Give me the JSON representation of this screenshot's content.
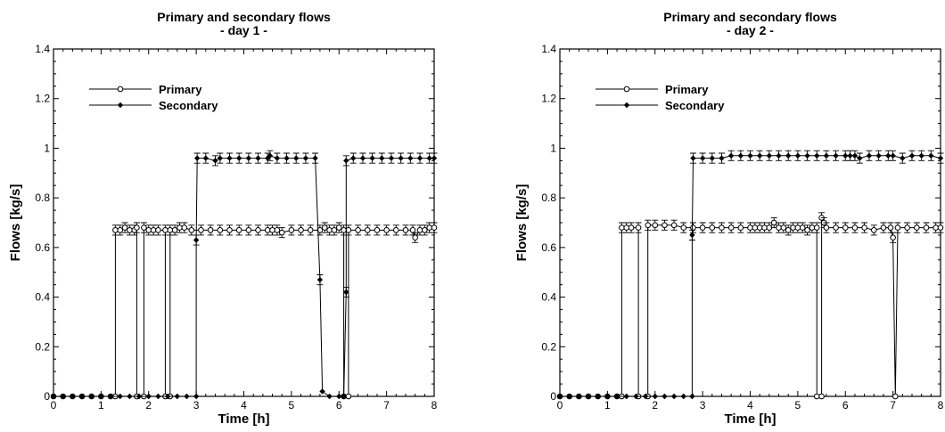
{
  "chart_data": [
    {
      "type": "line",
      "title": "Primary and secondary flows",
      "subtitle": "- day 1 -",
      "xlabel": "Time [h]",
      "ylabel": "Flows [kg/s]",
      "xlim": [
        0,
        8
      ],
      "ylim": [
        0,
        1.4
      ],
      "x_ticks": [
        "0",
        "1",
        "2",
        "3",
        "4",
        "5",
        "6",
        "7",
        "8"
      ],
      "y_ticks": [
        "0",
        "0.2",
        "0.4",
        "0.6",
        "0.8",
        "1",
        "1.2",
        "1.4"
      ],
      "grid": false,
      "legend_position": "top-left",
      "error_bar": 0.02,
      "series": [
        {
          "name": "Primary",
          "marker": "open-circle",
          "points": [
            [
              0,
              0
            ],
            [
              0.2,
              0
            ],
            [
              0.4,
              0
            ],
            [
              0.6,
              0
            ],
            [
              0.8,
              0
            ],
            [
              1.0,
              0
            ],
            [
              1.2,
              0
            ],
            [
              1.3,
              0
            ],
            [
              1.3,
              0.67
            ],
            [
              1.4,
              0.67
            ],
            [
              1.5,
              0.68
            ],
            [
              1.6,
              0.67
            ],
            [
              1.7,
              0.67
            ],
            [
              1.75,
              0.68
            ],
            [
              1.75,
              0
            ],
            [
              1.9,
              0
            ],
            [
              1.9,
              0.68
            ],
            [
              2.0,
              0.67
            ],
            [
              2.1,
              0.67
            ],
            [
              2.2,
              0.67
            ],
            [
              2.35,
              0.67
            ],
            [
              2.35,
              0
            ],
            [
              2.45,
              0
            ],
            [
              2.45,
              0.67
            ],
            [
              2.55,
              0.67
            ],
            [
              2.65,
              0.68
            ],
            [
              2.75,
              0.68
            ],
            [
              2.9,
              0.67
            ],
            [
              3.1,
              0.67
            ],
            [
              3.3,
              0.67
            ],
            [
              3.5,
              0.67
            ],
            [
              3.7,
              0.67
            ],
            [
              3.9,
              0.67
            ],
            [
              4.1,
              0.67
            ],
            [
              4.3,
              0.67
            ],
            [
              4.5,
              0.67
            ],
            [
              4.6,
              0.67
            ],
            [
              4.7,
              0.67
            ],
            [
              4.8,
              0.66
            ],
            [
              5.0,
              0.67
            ],
            [
              5.2,
              0.67
            ],
            [
              5.4,
              0.67
            ],
            [
              5.6,
              0.67
            ],
            [
              5.7,
              0.68
            ],
            [
              5.8,
              0.67
            ],
            [
              5.9,
              0.67
            ],
            [
              6.0,
              0.68
            ],
            [
              6.1,
              0.67
            ],
            [
              6.1,
              0
            ],
            [
              6.2,
              0
            ],
            [
              6.2,
              0.67
            ],
            [
              6.4,
              0.67
            ],
            [
              6.6,
              0.67
            ],
            [
              6.8,
              0.67
            ],
            [
              7.0,
              0.67
            ],
            [
              7.2,
              0.67
            ],
            [
              7.4,
              0.67
            ],
            [
              7.55,
              0.67
            ],
            [
              7.6,
              0.64
            ],
            [
              7.7,
              0.67
            ],
            [
              7.8,
              0.67
            ],
            [
              7.9,
              0.68
            ],
            [
              8.0,
              0.68
            ]
          ]
        },
        {
          "name": "Secondary",
          "marker": "filled-diamond",
          "points": [
            [
              0,
              0
            ],
            [
              0.2,
              0
            ],
            [
              0.4,
              0
            ],
            [
              0.6,
              0
            ],
            [
              0.8,
              0
            ],
            [
              1.0,
              0
            ],
            [
              1.2,
              0
            ],
            [
              1.4,
              0
            ],
            [
              1.6,
              0
            ],
            [
              1.8,
              0
            ],
            [
              2.0,
              0
            ],
            [
              2.2,
              0
            ],
            [
              2.4,
              0
            ],
            [
              2.6,
              0
            ],
            [
              2.8,
              0
            ],
            [
              3.0,
              0
            ],
            [
              3.0,
              0.63
            ],
            [
              3.02,
              0.96
            ],
            [
              3.2,
              0.96
            ],
            [
              3.4,
              0.95
            ],
            [
              3.5,
              0.96
            ],
            [
              3.7,
              0.96
            ],
            [
              3.9,
              0.96
            ],
            [
              4.1,
              0.96
            ],
            [
              4.3,
              0.96
            ],
            [
              4.5,
              0.96
            ],
            [
              4.55,
              0.97
            ],
            [
              4.7,
              0.96
            ],
            [
              4.9,
              0.96
            ],
            [
              5.1,
              0.96
            ],
            [
              5.3,
              0.96
            ],
            [
              5.5,
              0.96
            ],
            [
              5.6,
              0.47
            ],
            [
              5.65,
              0.02
            ],
            [
              5.8,
              0
            ],
            [
              6.0,
              0
            ],
            [
              6.1,
              0
            ],
            [
              6.15,
              0.42
            ],
            [
              6.15,
              0.95
            ],
            [
              6.3,
              0.96
            ],
            [
              6.5,
              0.96
            ],
            [
              6.7,
              0.96
            ],
            [
              6.9,
              0.96
            ],
            [
              7.1,
              0.96
            ],
            [
              7.3,
              0.96
            ],
            [
              7.5,
              0.96
            ],
            [
              7.7,
              0.96
            ],
            [
              7.9,
              0.96
            ],
            [
              8.0,
              0.96
            ]
          ]
        }
      ]
    },
    {
      "type": "line",
      "title": "Primary and secondary flows",
      "subtitle": "- day 2 -",
      "xlabel": "Time [h]",
      "ylabel": "Flows [kg/s]",
      "xlim": [
        0,
        8
      ],
      "ylim": [
        0,
        1.4
      ],
      "x_ticks": [
        "0",
        "1",
        "2",
        "3",
        "4",
        "5",
        "6",
        "7",
        "8"
      ],
      "y_ticks": [
        "0",
        "0.2",
        "0.4",
        "0.6",
        "0.8",
        "1",
        "1.2",
        "1.4"
      ],
      "grid": false,
      "legend_position": "top-left",
      "error_bar": 0.02,
      "series": [
        {
          "name": "Primary",
          "marker": "open-circle",
          "points": [
            [
              0,
              0
            ],
            [
              0.2,
              0
            ],
            [
              0.4,
              0
            ],
            [
              0.6,
              0
            ],
            [
              0.8,
              0
            ],
            [
              1.0,
              0
            ],
            [
              1.2,
              0
            ],
            [
              1.3,
              0
            ],
            [
              1.3,
              0.68
            ],
            [
              1.4,
              0.68
            ],
            [
              1.5,
              0.68
            ],
            [
              1.65,
              0.68
            ],
            [
              1.65,
              0
            ],
            [
              1.85,
              0
            ],
            [
              1.85,
              0.69
            ],
            [
              2.0,
              0.69
            ],
            [
              2.2,
              0.69
            ],
            [
              2.4,
              0.69
            ],
            [
              2.6,
              0.68
            ],
            [
              2.8,
              0.68
            ],
            [
              3.0,
              0.68
            ],
            [
              3.2,
              0.68
            ],
            [
              3.4,
              0.68
            ],
            [
              3.6,
              0.68
            ],
            [
              3.8,
              0.68
            ],
            [
              4.0,
              0.68
            ],
            [
              4.1,
              0.68
            ],
            [
              4.2,
              0.68
            ],
            [
              4.3,
              0.68
            ],
            [
              4.4,
              0.68
            ],
            [
              4.5,
              0.7
            ],
            [
              4.6,
              0.68
            ],
            [
              4.7,
              0.68
            ],
            [
              4.8,
              0.67
            ],
            [
              4.9,
              0.68
            ],
            [
              5.0,
              0.68
            ],
            [
              5.1,
              0.68
            ],
            [
              5.2,
              0.67
            ],
            [
              5.3,
              0.68
            ],
            [
              5.4,
              0.68
            ],
            [
              5.4,
              0
            ],
            [
              5.5,
              0
            ],
            [
              5.5,
              0.72
            ],
            [
              5.55,
              0.7
            ],
            [
              5.6,
              0.68
            ],
            [
              5.8,
              0.68
            ],
            [
              6.0,
              0.68
            ],
            [
              6.2,
              0.68
            ],
            [
              6.4,
              0.68
            ],
            [
              6.6,
              0.67
            ],
            [
              6.8,
              0.68
            ],
            [
              6.95,
              0.68
            ],
            [
              7.0,
              0.64
            ],
            [
              7.05,
              0
            ],
            [
              7.1,
              0.68
            ],
            [
              7.3,
              0.68
            ],
            [
              7.5,
              0.68
            ],
            [
              7.7,
              0.68
            ],
            [
              7.9,
              0.68
            ],
            [
              8.0,
              0.68
            ]
          ]
        },
        {
          "name": "Secondary",
          "marker": "filled-diamond",
          "points": [
            [
              0,
              0
            ],
            [
              0.2,
              0
            ],
            [
              0.4,
              0
            ],
            [
              0.6,
              0
            ],
            [
              0.8,
              0
            ],
            [
              1.0,
              0
            ],
            [
              1.2,
              0
            ],
            [
              1.4,
              0
            ],
            [
              1.6,
              0
            ],
            [
              1.8,
              0
            ],
            [
              2.0,
              0
            ],
            [
              2.2,
              0
            ],
            [
              2.4,
              0
            ],
            [
              2.6,
              0
            ],
            [
              2.78,
              0
            ],
            [
              2.78,
              0.65
            ],
            [
              2.8,
              0.96
            ],
            [
              3.0,
              0.96
            ],
            [
              3.2,
              0.96
            ],
            [
              3.4,
              0.96
            ],
            [
              3.6,
              0.97
            ],
            [
              3.8,
              0.97
            ],
            [
              4.0,
              0.97
            ],
            [
              4.2,
              0.97
            ],
            [
              4.4,
              0.97
            ],
            [
              4.6,
              0.97
            ],
            [
              4.8,
              0.97
            ],
            [
              5.0,
              0.97
            ],
            [
              5.2,
              0.97
            ],
            [
              5.4,
              0.97
            ],
            [
              5.6,
              0.97
            ],
            [
              5.8,
              0.97
            ],
            [
              6.0,
              0.97
            ],
            [
              6.1,
              0.97
            ],
            [
              6.2,
              0.97
            ],
            [
              6.3,
              0.96
            ],
            [
              6.5,
              0.97
            ],
            [
              6.7,
              0.97
            ],
            [
              6.9,
              0.97
            ],
            [
              7.0,
              0.97
            ],
            [
              7.2,
              0.96
            ],
            [
              7.4,
              0.97
            ],
            [
              7.6,
              0.97
            ],
            [
              7.8,
              0.97
            ],
            [
              8.0,
              0.96
            ]
          ]
        }
      ]
    }
  ]
}
